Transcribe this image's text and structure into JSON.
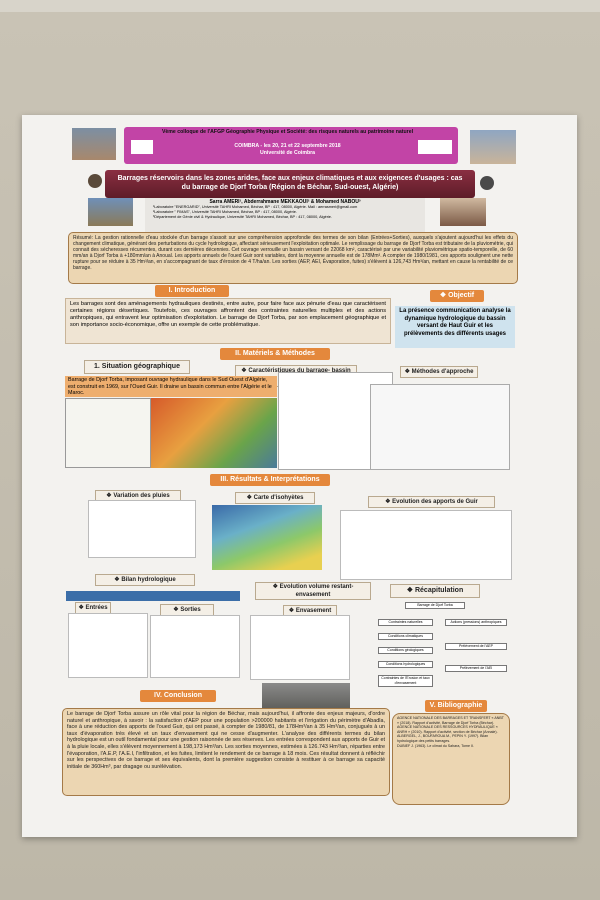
{
  "header": {
    "conference": "Vème colloque de l'AFGP Géographie Physique et Société: des risques naturels au patrimoine naturel",
    "dates": "COIMBRA - les 20, 21 et 22 septembre 2018",
    "venue": "Université de Coimbra",
    "title": "Barrages réservoirs dans les zones arides, face aux enjeux climatiques et aux exigences d'usages : cas du barrage de Djorf Torba (Région de Béchar, Sud-ouest, Algérie)",
    "authors": "Sarra AMERI¹, Abderrahmane MEKKAOUI² & Mohamed NABOU³",
    "affiliations": [
      "¹Laboratoire \"ENERGARID\", Université TAHRI Mohamed, Béchar, BP : 417, 08000, Algérie. Mail : aerrasmeri@gmail.com",
      "²Laboratoire \" FIMAS\", Université TAHRI Mohamed, Béchar, BP : 417, 08000, Algérie.",
      "³Département de Génie civil & Hydraulique, Université TAHRI Mohamed, Béchar, BP : 417, 08000, Algérie."
    ]
  },
  "abstract": "Résumé: La gestion rationnelle d'eau stockée d'un barrage s'assoit sur une compréhension approfondie des termes de son bilan (Entrées+Sorties), auxquels s'ajoutent aujourd'hui les effets du changement climatique, générant des perturbations du cycle hydrologique, affectant sérieusement l'exploitation optimale. Le remplissage du barrage de Djorf Torba est tributaire de la pluviométrie, qui connait des sécheresses récurrentes, durant ces dernières décennies. Cet ouvrage verrouille un bassin versant de 22068 km², caractérisé par une variabilité pluviométrique spatio-temporelle, de 60 mm/an à Djorf Torba à +180mm/an à Anoual. Les apports annuels de l'oued Guir sont variables, dont la moyenne annuelle est de 178Mm³. A compter de 1980/1981, ces apports soulignent une nette rupture pour se réduire à 35 Hm³/an, en s'accompagnant de taux d'érosion de 4 T/ha/an. Les sorties (AEP, AEI, Évaporation, fuites) s'élèvent à 126,743 Hm³/an, mettant en cause la rentabilité de ce barrage.",
  "introduction": {
    "heading": "I. Introduction",
    "text": "Les barrages sont des aménagements hydrauliques destinés, entre autre, pour faire face aux pénurie d'eau que caractérisent certaines régions désertiques. Toutefois, ces ouvrages affrontent des contraintes naturelles multiples et des actions anthropiques, qui entravent leur optimisation d'exploitation. Le barrage de Djorf Torba, par son emplacement géographique et son importance socio-économique, offre un exemple de cette problématique."
  },
  "objectif": {
    "heading": "❖ Objectif",
    "text": "La présence communication analyse la dynamique hydrologique du bassin versant de Haut Guir et les prélèvements des différents usages"
  },
  "methods": {
    "heading": "II. Matériels & Méthodes",
    "situation_heading": "1. Situation géographique",
    "situation_text": "Barrage de Djorf Torba, imposant ouvrage hydraulique dans le Sud Ouest d'Algérie, est construit en 1969, sur l'Oued Guir. Il draine un bassin commun entre l'Algérie et le Maroc.",
    "characteristics_heading": "❖ Caractéristiques du barrage- bassin versant",
    "approach_heading": "❖ Méthodes d'approche"
  },
  "results": {
    "heading": "III. Résultats & Interprétations",
    "rain_heading": "❖ Variation des pluies",
    "isohyet_heading": "❖ Carte d'isohyètes",
    "inflow_heading": "❖ Evolution des apports de Guir",
    "balance_heading": "❖ Bilan hydrologique",
    "inputs_heading": "❖ Entrées",
    "outputs_heading": "❖ Sorties",
    "volume_heading": "❖ Evolution volume restant-envasement",
    "silting_heading": "❖ Envasement",
    "summary_heading": "❖ Récapitulation",
    "summary_boxes": [
      "Barrage de Djorf Torba",
      "Contraintes naturelles",
      "Actions (pressions) anthropiques",
      "Conditions climatiques",
      "Conditions géologiques",
      "Conditions hydrologiques",
      "Contraintes de l'Erosion et taux d'envasement",
      "Prélèvement de l'AEP",
      "Prélèvement de l'AEI"
    ]
  },
  "conclusion": {
    "heading": "IV. Conclusion",
    "text": "Le barrage de Djorf Torba assure un rôle vital pour la région de Béchar, mais aujourd'hui, il affronte des enjeux majeurs, d'ordre naturel et anthropique, à savoir : la satisfaction d'AEP pour une population >200000 habitants et l'irrigation du périmètre d'Abadla, face à une réduction des apports de l'oued Guir, qui ont passé, à compter de 1980/81, de 178Hm³/an à 35 Hm³/an, conjugués à un taux d'évaporation très élevé et un taux d'envasement qui ne cesse d'augmenter. L'analyse des différents termes du bilan hydrologique est un outil fondamental pour une gestion raisonnée de ses réserves. Les entrées correspondent aux apports de Guir et à la pluie locale, elles s'élèvent moyennement à 198,173 Hm³/an. Les sorties moyennes, estimées à 126.743 Hm³/an, réparties entre l'évaporation, l'A.E.P, l'A.E.I, l'infiltration, et les fuites, limitent le rendement de ce barrage à 18 mois. Ces résultat donnent à réfléchir sur les perspectives de ce barrage et ses équivalents, dont la première suggestion consiste à restituer à ce barrage sa capacité initiale de 360Hm³, par dragage ou surélévation."
  },
  "bibliography": {
    "heading": "V. Bibliographie",
    "entries": [
      "AGENCE NATIONALE DES BARRAGES ET TRANSFERT « ANBT » (2018). Rapport d'activité, Barrage de Djorf Torba (Béchar).",
      "AGENCE NATIONALE DES RESSOURCES HYDRAULIQUE « ANRH » (2010). Rapport d'activité, section de Béchar (Annale).",
      "ALBERGEL, J., BOUFAROUA M., PEPIN Y. (1997). Bilan hydrologique des petits barrages.",
      "DUBIEF J. (1963). Le climat du Sahara, Tome II."
    ]
  }
}
